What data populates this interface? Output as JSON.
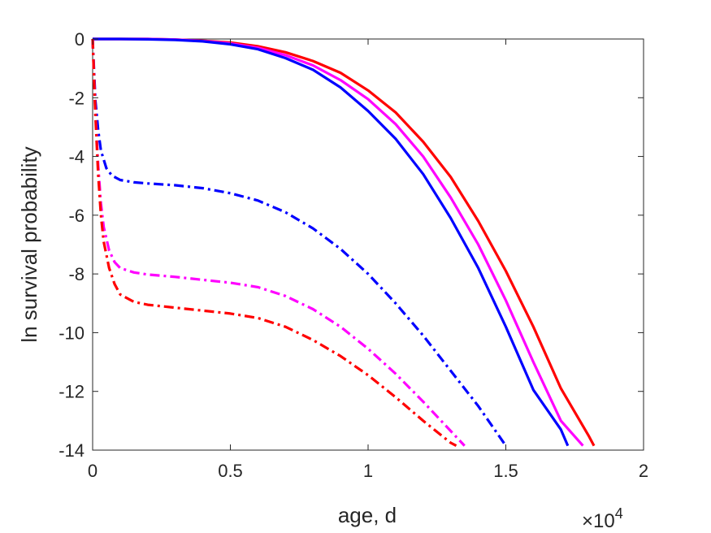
{
  "chart_data": {
    "type": "line",
    "title": "",
    "xlabel": "age, d",
    "ylabel": "ln survival probability",
    "x_exponent_label": "×10",
    "x_exponent_power": "4",
    "xlim": [
      0,
      20000
    ],
    "ylim": [
      -14,
      0
    ],
    "xticks": [
      0,
      5000,
      10000,
      15000,
      20000
    ],
    "xtick_labels": [
      "0",
      "0.5",
      "1",
      "1.5",
      "2"
    ],
    "yticks": [
      0,
      -2,
      -4,
      -6,
      -8,
      -10,
      -12,
      -14
    ],
    "ytick_labels": [
      "0",
      "-2",
      "-4",
      "-6",
      "-8",
      "-10",
      "-12",
      "-14"
    ],
    "grid": false,
    "legend": "none",
    "series": [
      {
        "color": "#ff0000",
        "style": "solid",
        "x": [
          0,
          1000,
          2000,
          3000,
          4000,
          5000,
          6000,
          7000,
          8000,
          9000,
          10000,
          11000,
          12000,
          13000,
          14000,
          15000,
          16000,
          17000,
          18000,
          18200
        ],
        "y": [
          0,
          0,
          0,
          -0.02,
          -0.06,
          -0.12,
          -0.25,
          -0.45,
          -0.75,
          -1.15,
          -1.75,
          -2.5,
          -3.5,
          -4.7,
          -6.2,
          -7.9,
          -9.8,
          -11.9,
          -13.5,
          -13.85
        ]
      },
      {
        "color": "#ff00ff",
        "style": "solid",
        "x": [
          0,
          1000,
          2000,
          3000,
          4000,
          5000,
          6000,
          7000,
          8000,
          9000,
          10000,
          11000,
          12000,
          13000,
          14000,
          15000,
          16000,
          17000,
          17800
        ],
        "y": [
          0,
          0,
          0,
          -0.02,
          -0.07,
          -0.15,
          -0.3,
          -0.55,
          -0.9,
          -1.4,
          -2.05,
          -2.9,
          -4.0,
          -5.4,
          -7.0,
          -8.9,
          -11.0,
          -13.0,
          -13.85
        ]
      },
      {
        "color": "#0000ff",
        "style": "solid",
        "x": [
          0,
          1000,
          2000,
          3000,
          4000,
          5000,
          6000,
          7000,
          8000,
          9000,
          10000,
          11000,
          12000,
          13000,
          14000,
          15000,
          16000,
          17000,
          17250
        ],
        "y": [
          0,
          0,
          -0.01,
          -0.03,
          -0.08,
          -0.18,
          -0.35,
          -0.65,
          -1.05,
          -1.65,
          -2.45,
          -3.4,
          -4.6,
          -6.1,
          -7.8,
          -9.8,
          -11.95,
          -13.3,
          -13.85
        ]
      },
      {
        "color": "#0000ff",
        "style": "dashdot",
        "x": [
          0,
          100,
          200,
          300,
          500,
          700,
          1000,
          1500,
          2000,
          3000,
          4000,
          5000,
          6000,
          7000,
          8000,
          9000,
          10000,
          11000,
          12000,
          13000,
          14000,
          15000
        ],
        "y": [
          0,
          -2.1,
          -3.1,
          -3.8,
          -4.4,
          -4.65,
          -4.8,
          -4.88,
          -4.92,
          -4.98,
          -5.08,
          -5.25,
          -5.5,
          -5.9,
          -6.45,
          -7.15,
          -8.0,
          -9.0,
          -10.1,
          -11.3,
          -12.5,
          -13.85
        ]
      },
      {
        "color": "#ff00ff",
        "style": "dashdot",
        "x": [
          0,
          100,
          200,
          300,
          400,
          600,
          800,
          1000,
          1500,
          2000,
          3000,
          4000,
          5000,
          6000,
          7000,
          8000,
          9000,
          10000,
          11000,
          12000,
          13000,
          13500
        ],
        "y": [
          0,
          -2.5,
          -4.3,
          -5.6,
          -6.4,
          -7.2,
          -7.6,
          -7.8,
          -7.95,
          -8.02,
          -8.1,
          -8.2,
          -8.3,
          -8.45,
          -8.75,
          -9.2,
          -9.8,
          -10.55,
          -11.4,
          -12.35,
          -13.35,
          -13.85
        ]
      },
      {
        "color": "#ff0000",
        "style": "dashdot",
        "x": [
          0,
          100,
          200,
          300,
          400,
          600,
          800,
          1000,
          1500,
          2000,
          3000,
          4000,
          5000,
          6000,
          7000,
          8000,
          9000,
          10000,
          11000,
          12000,
          13000,
          13200
        ],
        "y": [
          0,
          -2.6,
          -4.6,
          -6.0,
          -6.9,
          -7.8,
          -8.35,
          -8.7,
          -8.95,
          -9.05,
          -9.15,
          -9.25,
          -9.35,
          -9.5,
          -9.8,
          -10.25,
          -10.8,
          -11.45,
          -12.2,
          -13.0,
          -13.75,
          -13.85
        ]
      }
    ]
  }
}
